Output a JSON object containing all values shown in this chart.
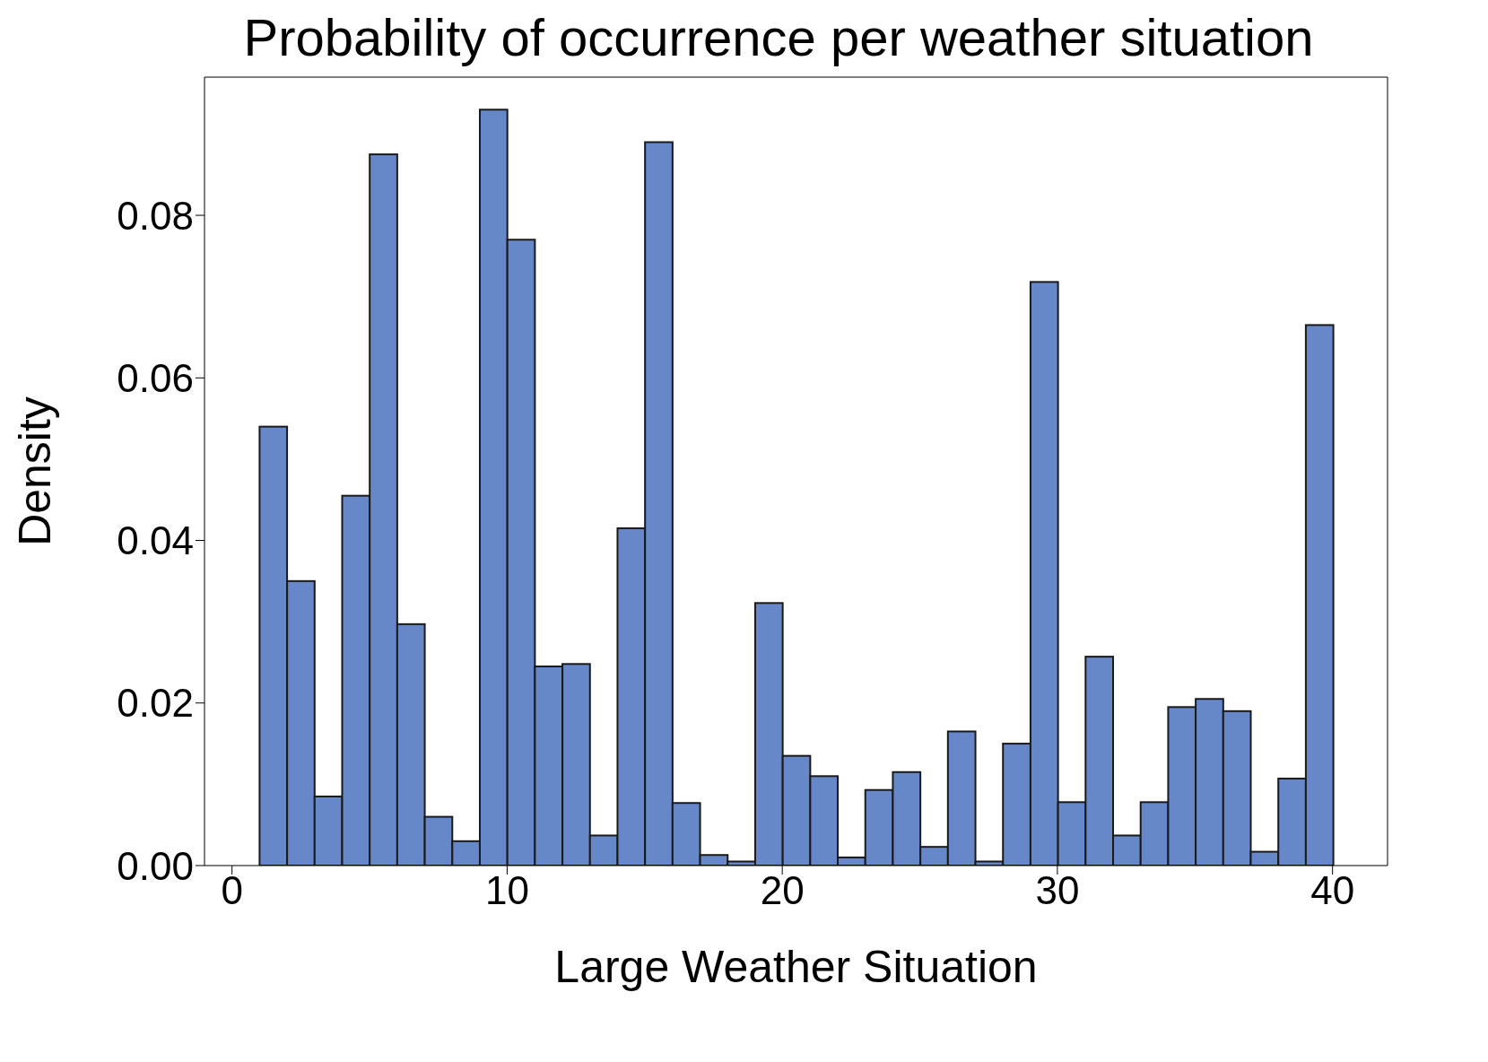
{
  "chart_data": {
    "type": "histogram",
    "title": "Probability of occurrence per weather situation",
    "xlabel": "Large Weather Situation",
    "ylabel": "Density",
    "bins": [
      1,
      2,
      3,
      4,
      5,
      6,
      7,
      8,
      9,
      10,
      11,
      12,
      13,
      14,
      15,
      16,
      17,
      18,
      19,
      20,
      21,
      22,
      23,
      24,
      25,
      26,
      27,
      28,
      29,
      30,
      31,
      32,
      33,
      34,
      35,
      36,
      37,
      38,
      39,
      40
    ],
    "values": [
      0.054,
      0.035,
      0.0085,
      0.0455,
      0.0875,
      0.0297,
      0.006,
      0.003,
      0.093,
      0.077,
      0.0245,
      0.0248,
      0.0037,
      0.0415,
      0.089,
      0.0077,
      0.0013,
      0.0005,
      0.0323,
      0.0135,
      0.011,
      0.001,
      0.0093,
      0.0115,
      0.0023,
      0.0165,
      0.0005,
      0.015,
      0.0718,
      0.0078,
      0.0257,
      0.0037,
      0.0078,
      0.0195,
      0.0205,
      0.019,
      0.0017,
      0.0107,
      0.0665
    ],
    "color": "#6688c8",
    "xlim": [
      -1,
      42
    ],
    "xticks": [
      0,
      10,
      20,
      30,
      40
    ],
    "ylim": [
      0,
      0.097
    ],
    "yticks": [
      {
        "value": 0,
        "label": "0.00"
      },
      {
        "value": 0.02,
        "label": "0.02"
      },
      {
        "value": 0.04,
        "label": "0.04"
      },
      {
        "value": 0.06,
        "label": "0.06"
      },
      {
        "value": 0.08,
        "label": "0.08"
      }
    ],
    "grid": false,
    "legend": false
  }
}
